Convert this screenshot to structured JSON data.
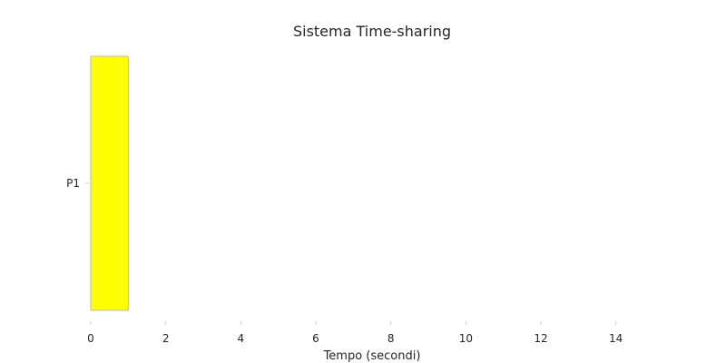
{
  "chart_data": {
    "type": "bar",
    "orientation": "horizontal",
    "title": "Sistema Time-sharing",
    "xlabel": "Tempo (secondi)",
    "ylabel": "",
    "categories": [
      "P1"
    ],
    "series": [
      {
        "start": [
          0
        ],
        "values": [
          1
        ],
        "color": "#ffff00",
        "edge_color": "#bbbbbb"
      }
    ],
    "xlim": [
      0,
      15
    ],
    "xticks": [
      0,
      2,
      4,
      6,
      8,
      10,
      12,
      14
    ],
    "grid": false,
    "legend": "none"
  }
}
